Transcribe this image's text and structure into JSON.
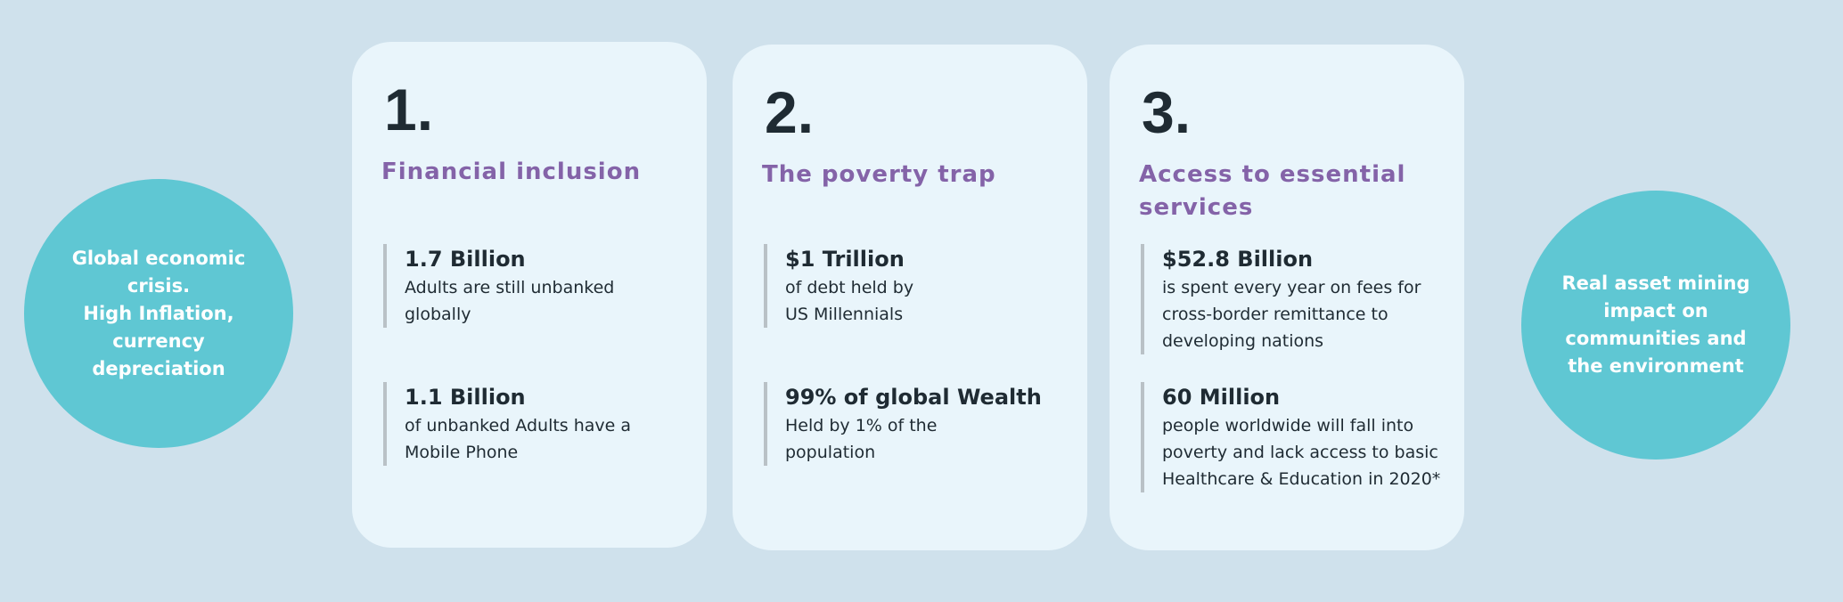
{
  "left_circle": {
    "text": "Global economic crisis.\nHigh Inflation, currency depreciation"
  },
  "right_circle": {
    "text": "Real asset  mining impact on communities and the environment"
  },
  "cards": [
    {
      "number": "1.",
      "heading": "Financial inclusion",
      "stats": [
        {
          "title": "1.7 Billion",
          "desc": "Adults are still unbanked globally"
        },
        {
          "title": "1.1 Billion",
          "desc": "of unbanked Adults have a Mobile Phone"
        }
      ]
    },
    {
      "number": "2.",
      "heading": "The poverty trap",
      "stats": [
        {
          "title": "$1 Trillion",
          "desc": "of debt held by US Millennials"
        },
        {
          "title": "99% of global Wealth",
          "desc": "Held by 1% of the population"
        }
      ]
    },
    {
      "number": "3.",
      "heading": "Access to essential services",
      "stats": [
        {
          "title": "$52.8 Billion",
          "desc": "is spent every year on fees for cross-border remittance to developing nations"
        },
        {
          "title": "60 Million",
          "desc": "people worldwide will fall into poverty and lack access to basic Healthcare & Education in 2020*"
        }
      ]
    }
  ],
  "colors": {
    "background": "#cfe1ec",
    "circle": "#5fc7d3",
    "card": "#e9f5fb",
    "heading": "#8463a8",
    "text": "#1f2b33"
  }
}
